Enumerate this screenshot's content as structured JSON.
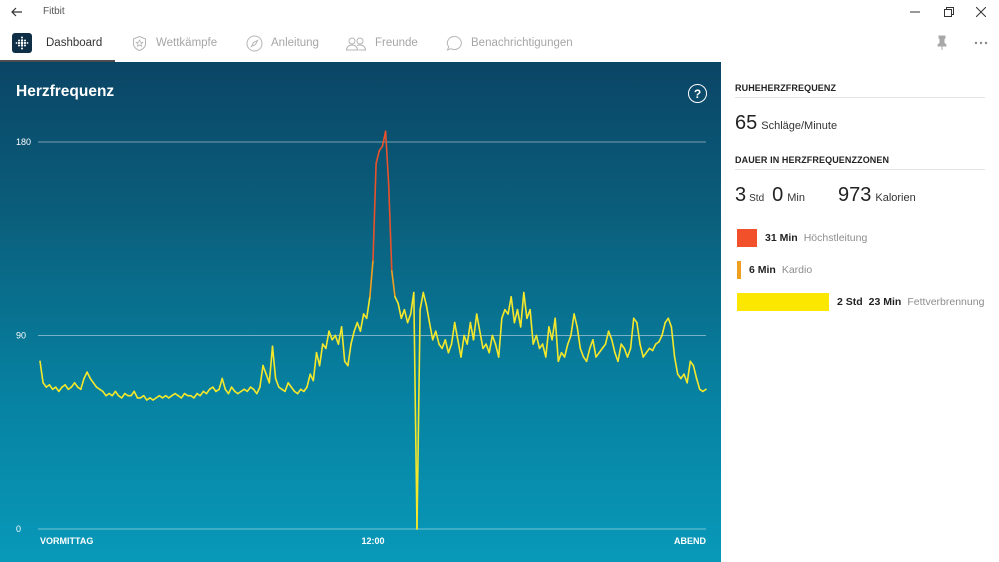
{
  "window": {
    "title": "Fitbit",
    "back_icon": "arrow-left-icon",
    "minimize_icon": "minimize-icon",
    "restore_icon": "restore-icon",
    "close_icon": "close-icon"
  },
  "nav": {
    "items": [
      {
        "label": "Dashboard",
        "icon": "fitbit-logo-icon",
        "active": true
      },
      {
        "label": "Wettkämpfe",
        "icon": "badge-star-icon",
        "active": false
      },
      {
        "label": "Anleitung",
        "icon": "compass-icon",
        "active": false
      },
      {
        "label": "Freunde",
        "icon": "friends-icon",
        "active": false
      },
      {
        "label": "Benachrichtigungen",
        "icon": "chat-bubble-icon",
        "active": false
      }
    ],
    "pin_icon": "pin-icon",
    "more_icon": "more-icon"
  },
  "chart_panel": {
    "title": "Herzfrequenz",
    "help_label": "?"
  },
  "chart_data": {
    "type": "line",
    "title": "Herzfrequenz",
    "xlabel": "",
    "ylabel": "",
    "ylim": [
      0,
      180
    ],
    "yticks": [
      0,
      90,
      180
    ],
    "grid": true,
    "xticks": [
      {
        "label": "VORMITTAG",
        "pos": 0
      },
      {
        "label": "12:00",
        "pos": 0.5
      },
      {
        "label": "ABEND",
        "pos": 1
      }
    ],
    "colors": {
      "normal": "#f5e82b",
      "elevated": "#f0a020",
      "peak": "#e8532b"
    },
    "series": [
      {
        "values": [
          78,
          68,
          66,
          67,
          65,
          66,
          64,
          66,
          67,
          65,
          66,
          68,
          66,
          65,
          70,
          73,
          70,
          68,
          66,
          65,
          64,
          62,
          63,
          62,
          64,
          62,
          61,
          63,
          62,
          62,
          64,
          61,
          61,
          62,
          60,
          61,
          60,
          61,
          62,
          61,
          62,
          61,
          62,
          63,
          62,
          61,
          63,
          62,
          62,
          61,
          63,
          62,
          64,
          63,
          65,
          66,
          64,
          65,
          70,
          65,
          63,
          66,
          64,
          63,
          64,
          65,
          64,
          66,
          65,
          63,
          66,
          76,
          72,
          68,
          85,
          70,
          66,
          65,
          64,
          68,
          66,
          64,
          63,
          65,
          64,
          66,
          72,
          69,
          82,
          76,
          86,
          84,
          92,
          88,
          90,
          86,
          94,
          78,
          76,
          86,
          92,
          96,
          92,
          100,
          98,
          108,
          125,
          170,
          176,
          178,
          185,
          160,
          120,
          108,
          105,
          98,
          102,
          96,
          100,
          110,
          0,
          102,
          110,
          104,
          96,
          88,
          92,
          86,
          84,
          88,
          82,
          86,
          96,
          88,
          80,
          90,
          86,
          96,
          88,
          100,
          92,
          84,
          86,
          82,
          90,
          86,
          80,
          98,
          102,
          100,
          108,
          96,
          102,
          94,
          110,
          98,
          102,
          86,
          90,
          84,
          86,
          80,
          94,
          88,
          98,
          78,
          82,
          80,
          86,
          90,
          100,
          94,
          84,
          80,
          78,
          84,
          88,
          80,
          82,
          84,
          86,
          92,
          88,
          82,
          78,
          86,
          84,
          80,
          84,
          98,
          96,
          86,
          80,
          82,
          84,
          83,
          86,
          87,
          90,
          96,
          98,
          94,
          80,
          72,
          70,
          72,
          68,
          78,
          76,
          70,
          65,
          64,
          65
        ]
      }
    ]
  },
  "side": {
    "resting_header": "RUHEHERZFREQUENZ",
    "resting_value": "65",
    "resting_unit": "Schläge/Minute",
    "zones_header": "DAUER IN HERZFREQUENZZONEN",
    "duration_hours": "3",
    "duration_hours_unit": "Std",
    "duration_minutes": "0",
    "duration_minutes_unit": "Min",
    "calories_value": "973",
    "calories_unit": "Kalorien",
    "zones": [
      {
        "time": "31 Min",
        "label": "Höchstleitung",
        "color": "#f2502a",
        "fraction": 0.027
      },
      {
        "time": "6 Min",
        "label": "Kardio",
        "color": "#f0a020",
        "fraction": 0.005
      },
      {
        "time_h": "2 Std",
        "time_m": "23 Min",
        "label": "Fettverbrennung",
        "color": "#fbe700",
        "fraction": 0.124
      }
    ]
  }
}
